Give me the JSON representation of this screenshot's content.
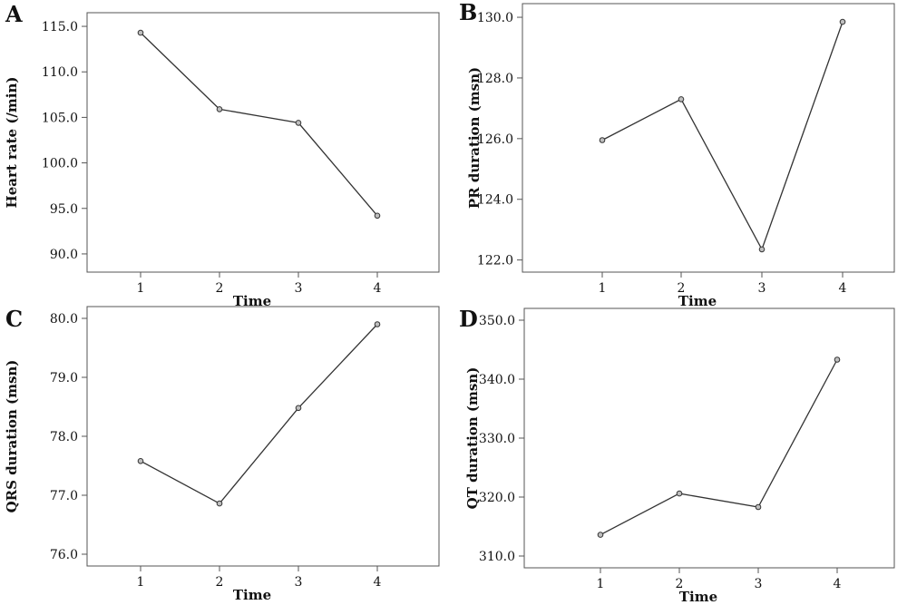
{
  "chart_data": [
    {
      "panel": "A",
      "type": "line",
      "xlabel": "Time",
      "ylabel": "Heart rate (/min)",
      "categories": [
        "1",
        "2",
        "3",
        "4"
      ],
      "values": [
        114.3,
        105.9,
        104.4,
        94.2
      ],
      "yticks": [
        "90.0",
        "95.0",
        "100.0",
        "105.0",
        "110.0",
        "115.0"
      ],
      "ylim": [
        88.0,
        116.5
      ],
      "grid": false
    },
    {
      "panel": "B",
      "type": "line",
      "xlabel": "Time",
      "ylabel": "PR duration (msn)",
      "categories": [
        "1",
        "2",
        "3",
        "4"
      ],
      "values": [
        125.95,
        127.3,
        122.35,
        129.85
      ],
      "yticks": [
        "122.0",
        "124.0",
        "126.0",
        "128.0",
        "130.0"
      ],
      "ylim": [
        121.6,
        130.45
      ],
      "grid": false
    },
    {
      "panel": "C",
      "type": "line",
      "xlabel": "Time",
      "ylabel": "QRS duration (msn)",
      "categories": [
        "1",
        "2",
        "3",
        "4"
      ],
      "values": [
        77.58,
        76.86,
        78.48,
        79.9
      ],
      "yticks": [
        "76.0",
        "77.0",
        "78.0",
        "79.0",
        "80.0"
      ],
      "ylim": [
        75.8,
        80.2
      ],
      "grid": false
    },
    {
      "panel": "D",
      "type": "line",
      "xlabel": "Time",
      "ylabel": "QT duration (msn)",
      "categories": [
        "1",
        "2",
        "3",
        "4"
      ],
      "values": [
        313.6,
        320.6,
        318.3,
        343.3
      ],
      "yticks": [
        "310.0",
        "320.0",
        "330.0",
        "340.0",
        "350.0"
      ],
      "ylim": [
        308.0,
        352.0
      ],
      "grid": false
    }
  ]
}
